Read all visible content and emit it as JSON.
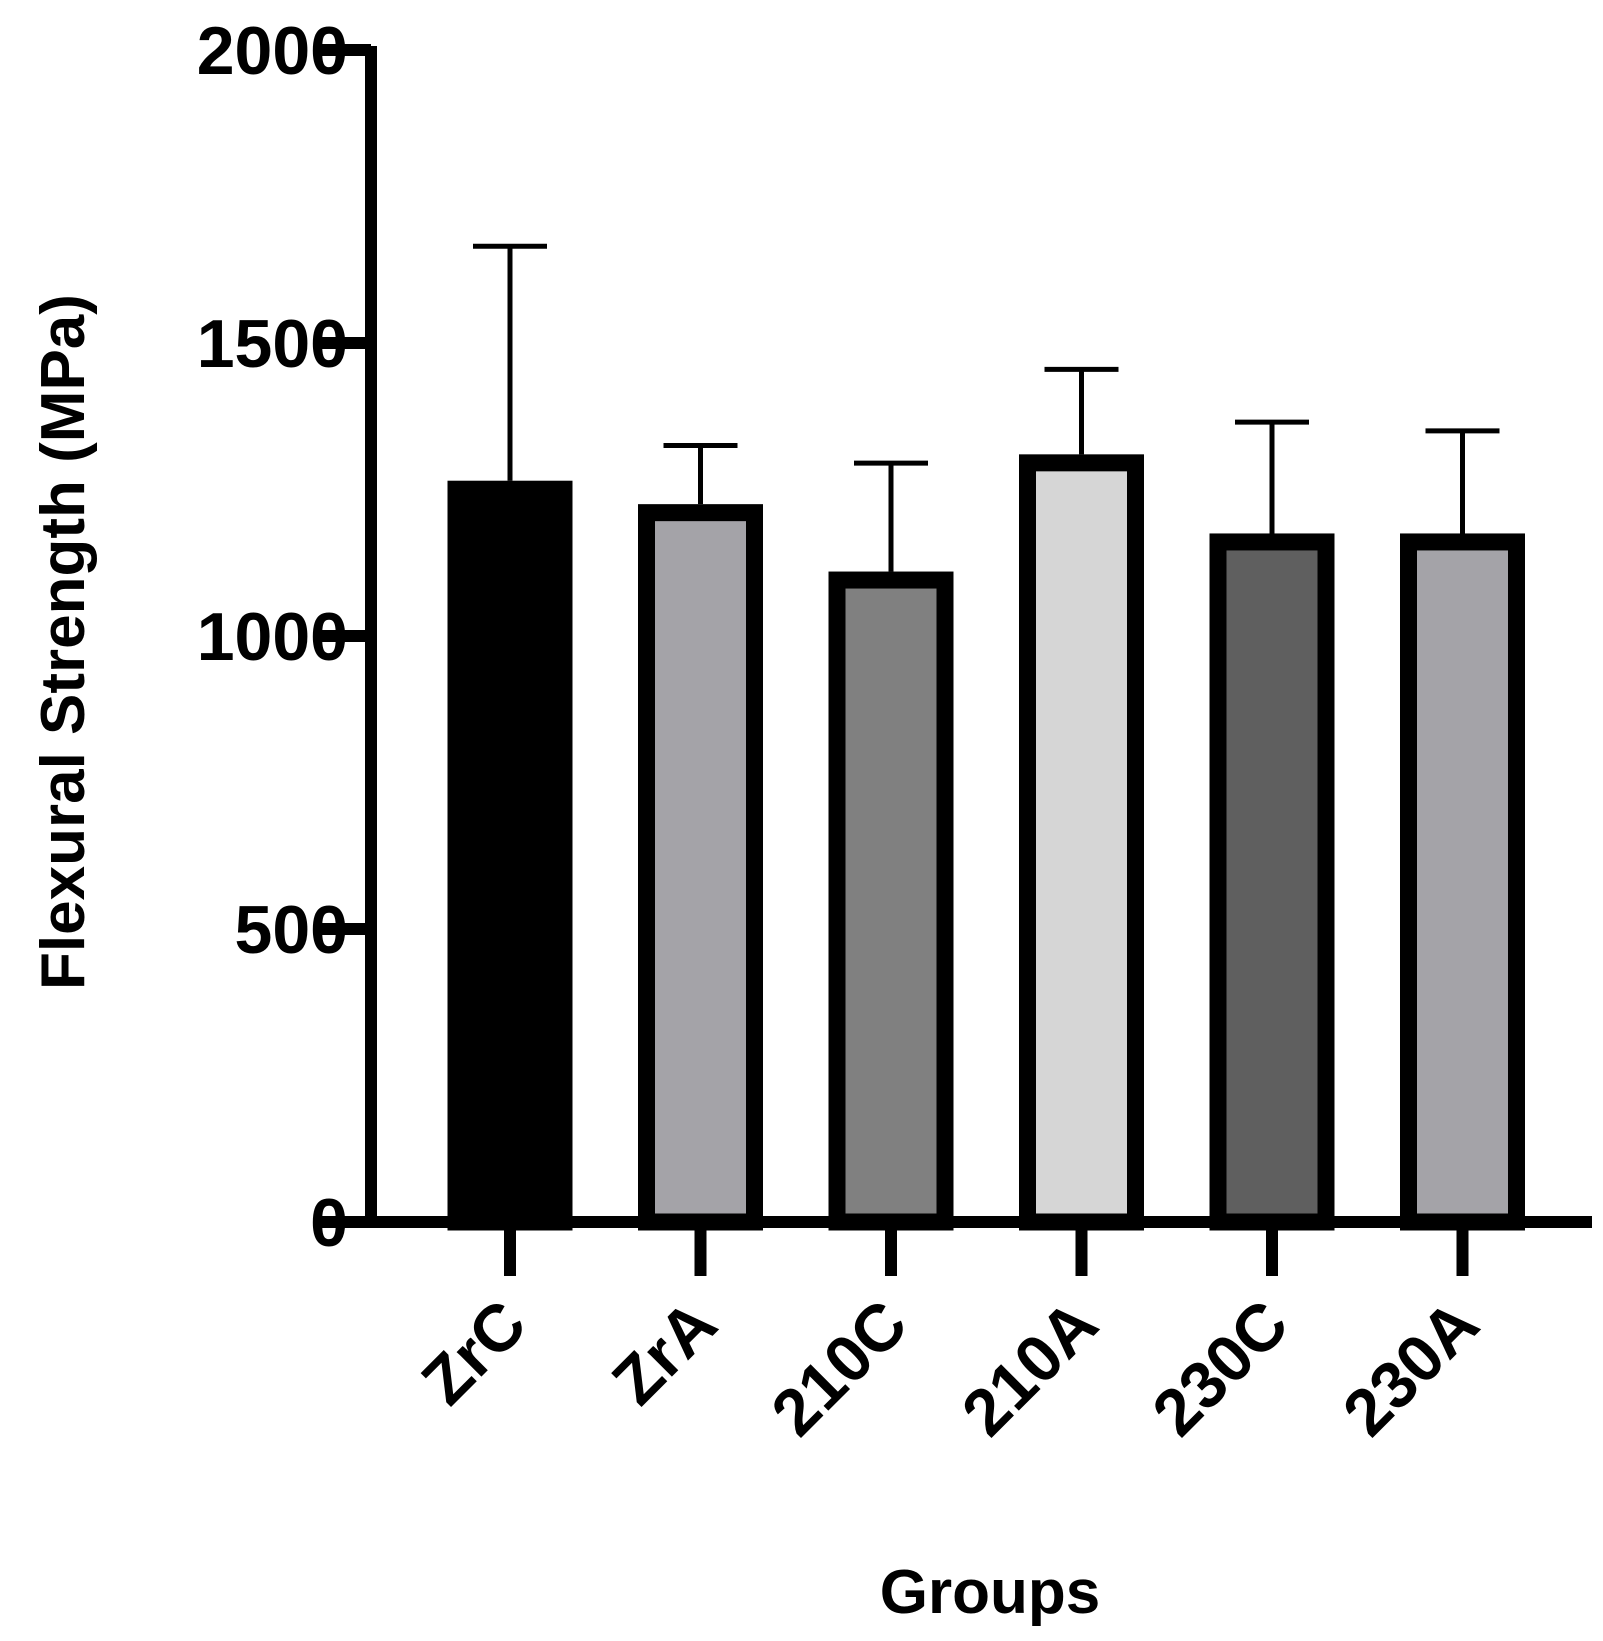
{
  "chart_data": {
    "type": "bar",
    "title": "",
    "xlabel": "Groups",
    "ylabel": "Flexural Strength (MPa)",
    "ylim": [
      0,
      2000
    ],
    "yticks": [
      0,
      500,
      1000,
      1500,
      2000
    ],
    "ytick_labels": [
      "0",
      "500",
      "1000",
      "1500",
      "2000"
    ],
    "categories": [
      "ZrC",
      "ZrA",
      "210C",
      "210A",
      "230C",
      "230A"
    ],
    "values": [
      1265,
      1225,
      1110,
      1310,
      1175,
      1175
    ],
    "error_upper": [
      1665,
      1325,
      1295,
      1455,
      1365,
      1350
    ],
    "bar_colors": [
      "#000000",
      "#a4a3a8",
      "#808080",
      "#d6d6d6",
      "#5f5f5f",
      "#a4a3a8"
    ],
    "grid": false,
    "legend": "none"
  }
}
